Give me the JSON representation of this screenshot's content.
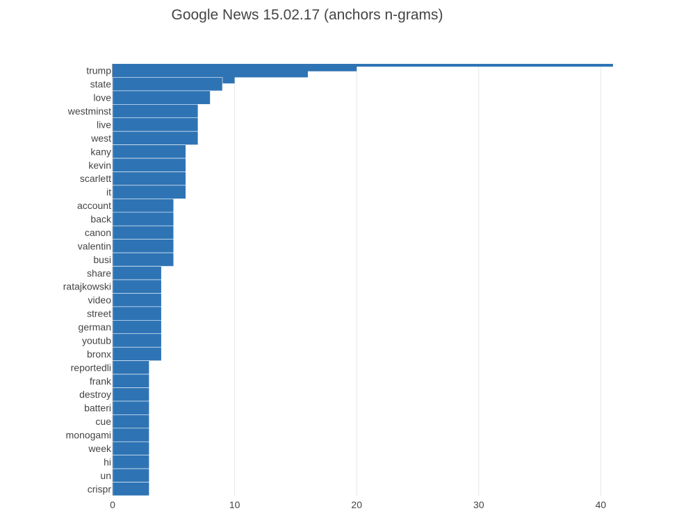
{
  "chart_data": {
    "type": "bar",
    "orientation": "horizontal",
    "title": "Google News 15.02.17 (anchors n-grams)",
    "xlabel": "",
    "ylabel": "",
    "xlim": [
      0,
      41
    ],
    "xticks": [
      "0",
      "10",
      "20",
      "30",
      "40"
    ],
    "grid": true,
    "bar_color": "#2e74b5",
    "gridline_color": "#e6e6e6",
    "categories": [
      "trump",
      "state",
      "love",
      "westminst",
      "live",
      "west",
      "kany",
      "kevin",
      "scarlett",
      "it",
      "account",
      "back",
      "canon",
      "valentin",
      "busi",
      "share",
      "ratajkowski",
      "video",
      "street",
      "german",
      "youtub",
      "bronx",
      "reportedli",
      "frank",
      "destroy",
      "batteri",
      "cue",
      "monogami",
      "week",
      "hi",
      "un",
      "crispr"
    ],
    "values": [
      41,
      9,
      8,
      7,
      7,
      7,
      6,
      6,
      6,
      6,
      5,
      5,
      5,
      5,
      5,
      4,
      4,
      4,
      4,
      4,
      4,
      4,
      3,
      3,
      3,
      3,
      3,
      3,
      3,
      3,
      3,
      3
    ],
    "hidden_bars_under_trump": [
      20,
      16,
      10
    ]
  }
}
